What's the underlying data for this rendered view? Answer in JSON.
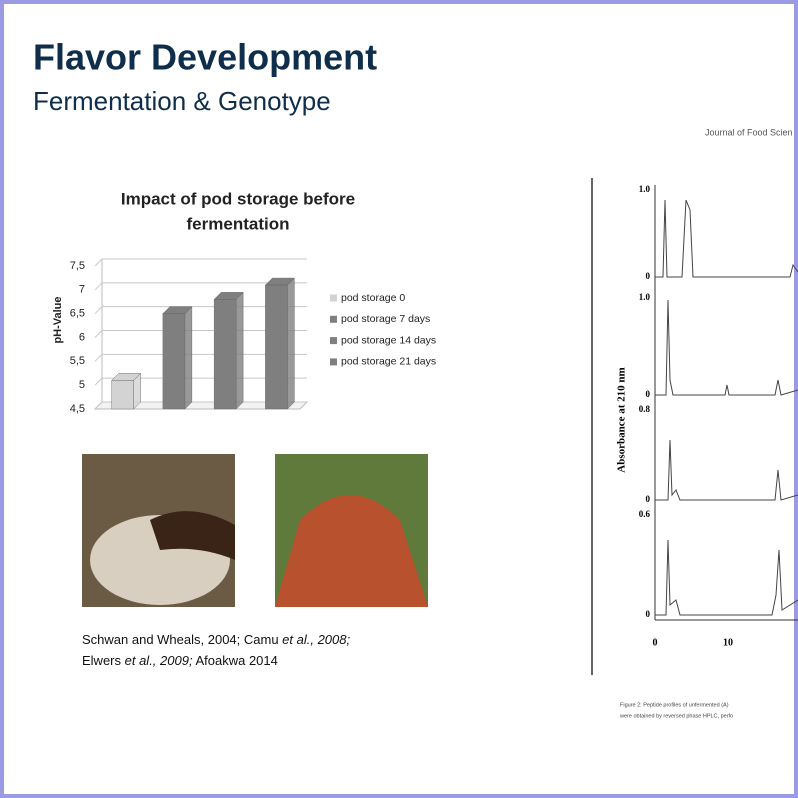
{
  "slide": {
    "title": "Flavor Development",
    "subtitle": "Fermentation & Genotype",
    "citation": [
      [
        "Schwan and Wheals, 2004; Camu ",
        "et al.,",
        "  2008;"
      ],
      [
        "Elwers ",
        "et al., 2009;",
        " Afoakwa 2014"
      ]
    ]
  },
  "chart_data": {
    "type": "bar",
    "title": [
      "Impact of pod storage before",
      "fermentation"
    ],
    "y_label": "pH-Value",
    "categories": [
      null
    ],
    "series": [
      {
        "name": "pod storage 0",
        "color": "#d3d3d3",
        "values": [
          5.1
        ]
      },
      {
        "name": "pod storage 7 days",
        "color": "#7f7f7f",
        "values": [
          6.5
        ]
      },
      {
        "name": "pod storage 14 days",
        "color": "#7f7f7f",
        "values": [
          6.8
        ]
      },
      {
        "name": "pod storage 21 days",
        "color": "#7f7f7f",
        "values": [
          7.1
        ]
      }
    ],
    "ylim": [
      4.5,
      7.5
    ],
    "yticks": [
      {
        "value": 4.5,
        "label": "4,5"
      },
      5,
      {
        "value": 5.5,
        "label": "5,5"
      },
      6,
      {
        "value": 6.5,
        "label": "6,5"
      },
      7,
      {
        "value": 7.5,
        "label": "7,5"
      }
    ],
    "grid": true,
    "legend": "right"
  },
  "figure": {
    "journal": "Journal of Food Scien",
    "y_label": "Absorbance at 210 nm",
    "panel_ticks": [
      "1.0",
      "0",
      "1.0",
      "0",
      "0.8",
      "0",
      "0.6",
      "0"
    ],
    "x_ticks": [
      "0",
      "10"
    ],
    "caption": [
      "Figure 2: Peptide profiles of unfermented (A)",
      "were obtained by reversed phase HPLC, perfo"
    ]
  }
}
